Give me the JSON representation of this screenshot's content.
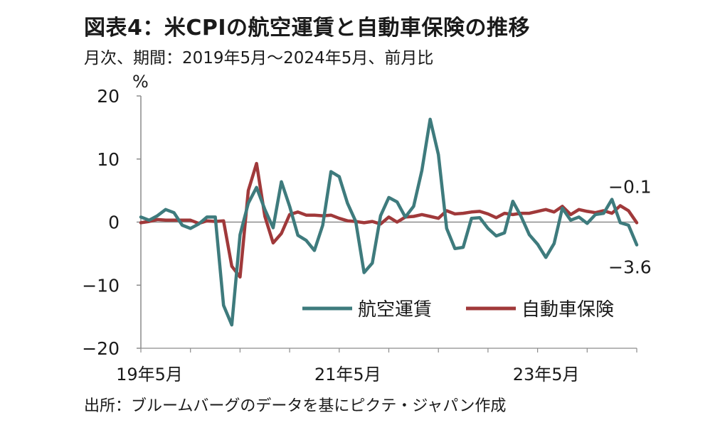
{
  "title": "図表4：米CPIの航空運賃と自動車保険の推移",
  "subtitle": "月次、期間：2019年5月～2024年5月、前月比",
  "source": "出所：ブルームバーグのデータを基にピクテ・ジャパン作成",
  "colors": {
    "airfare": "#3e7b7d",
    "auto_insurance": "#a0393a",
    "axis": "#8c8c8c"
  },
  "chart_data": {
    "type": "line",
    "title": "図表4：米CPIの航空運賃と自動車保険の推移",
    "subtitle": "月次、期間：2019年5月～2024年5月、前月比",
    "ylabel": "%",
    "xlabel": "",
    "ylim": [
      -20,
      20
    ],
    "yticks": [
      20,
      10,
      0,
      -10,
      -20
    ],
    "ytick_labels": [
      "20",
      "10",
      "0",
      "−10",
      "−20"
    ],
    "xtick_labels": [
      {
        "label": "19年5月",
        "index": 0
      },
      {
        "label": "21年5月",
        "index": 24
      },
      {
        "label": "23年5月",
        "index": 48
      }
    ],
    "grid": false,
    "legend": "bottom-right",
    "x": [
      "2019-05",
      "2019-06",
      "2019-07",
      "2019-08",
      "2019-09",
      "2019-10",
      "2019-11",
      "2019-12",
      "2020-01",
      "2020-02",
      "2020-03",
      "2020-04",
      "2020-05",
      "2020-06",
      "2020-07",
      "2020-08",
      "2020-09",
      "2020-10",
      "2020-11",
      "2020-12",
      "2021-01",
      "2021-02",
      "2021-03",
      "2021-04",
      "2021-05",
      "2021-06",
      "2021-07",
      "2021-08",
      "2021-09",
      "2021-10",
      "2021-11",
      "2021-12",
      "2022-01",
      "2022-02",
      "2022-03",
      "2022-04",
      "2022-05",
      "2022-06",
      "2022-07",
      "2022-08",
      "2022-09",
      "2022-10",
      "2022-11",
      "2022-12",
      "2023-01",
      "2023-02",
      "2023-03",
      "2023-04",
      "2023-05",
      "2023-06",
      "2023-07",
      "2023-08",
      "2023-09",
      "2023-10",
      "2023-11",
      "2023-12",
      "2024-01",
      "2024-02",
      "2024-03",
      "2024-04",
      "2024-05"
    ],
    "series": [
      {
        "name": "航空運賃",
        "color": "#3e7b7d",
        "values": [
          0.8,
          0.3,
          1.0,
          2.0,
          1.5,
          -0.5,
          -1.0,
          -0.3,
          0.8,
          0.8,
          -13.2,
          -16.3,
          -2.0,
          3.0,
          5.5,
          2.0,
          -0.9,
          6.4,
          2.5,
          -2.1,
          -2.9,
          -4.5,
          -0.5,
          8.0,
          7.2,
          3.0,
          0.1,
          -8.0,
          -6.5,
          1.0,
          3.9,
          3.2,
          0.8,
          2.5,
          8.2,
          16.3,
          10.7,
          -1.0,
          -4.2,
          -4.0,
          0.6,
          0.7,
          -1.0,
          -2.2,
          -1.7,
          3.3,
          0.9,
          -2.0,
          -3.5,
          -5.6,
          -3.4,
          2.2,
          0.3,
          0.8,
          -0.2,
          1.2,
          1.4,
          3.6,
          -0.1,
          -0.5,
          -3.6
        ]
      },
      {
        "name": "自動車保険",
        "color": "#a0393a",
        "values": [
          -0.1,
          0.1,
          0.4,
          0.3,
          0.3,
          0.3,
          0.3,
          -0.2,
          0.2,
          0.1,
          0.2,
          -7.0,
          -8.7,
          5.0,
          9.3,
          0.9,
          -3.3,
          -1.8,
          1.2,
          1.6,
          1.1,
          1.1,
          1.0,
          1.1,
          0.6,
          0.2,
          0.1,
          -0.1,
          0.1,
          -0.3,
          0.8,
          0.0,
          0.8,
          0.9,
          1.2,
          0.9,
          0.6,
          1.8,
          1.3,
          1.4,
          1.6,
          1.7,
          1.3,
          0.7,
          1.4,
          1.2,
          1.4,
          1.4,
          1.7,
          2.0,
          1.6,
          2.5,
          1.2,
          2.0,
          1.7,
          1.5,
          1.8,
          1.4,
          2.6,
          1.8,
          -0.1
        ]
      }
    ],
    "annotations": [
      {
        "text": "−0.1",
        "series": "自動車保険",
        "index": 60
      },
      {
        "text": "−3.6",
        "series": "航空運賃",
        "index": 60
      }
    ]
  }
}
